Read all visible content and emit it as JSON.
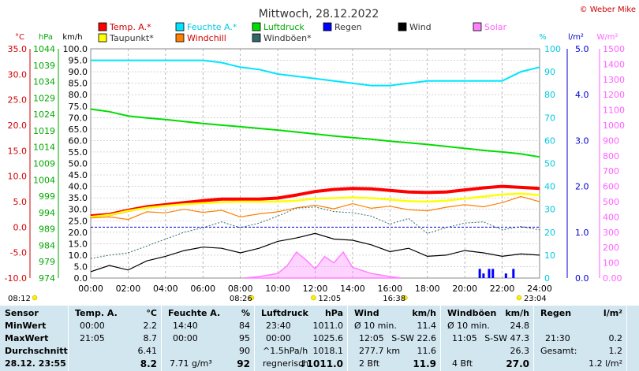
{
  "header": {
    "title": "Mittwoch, 28.12.2022",
    "copyright": "© Weber Mike"
  },
  "legend": [
    {
      "label": "Temp. A.*",
      "color": "#ff0000"
    },
    {
      "label": "Feuchte A.*",
      "color": "#00e5ff"
    },
    {
      "label": "Luftdruck",
      "color": "#00dd00"
    },
    {
      "label": "Regen",
      "color": "#0000ff"
    },
    {
      "label": "Wind",
      "color": "#000000"
    },
    {
      "label": "Solar",
      "color": "#ff80ff"
    },
    {
      "label": "Taupunkt*",
      "color": "#ffff00"
    },
    {
      "label": "Windchill",
      "color": "#ff8000"
    },
    {
      "label": "Windböen*",
      "color": "#336666"
    }
  ],
  "axes": {
    "unit_temp": "°C",
    "unit_hpa": "hPa",
    "unit_kmh": "km/h",
    "unit_pct": "%",
    "unit_rain": "l/m²",
    "unit_solar": "W/m²",
    "temp_ticks": [
      "35.0",
      "30.0",
      "25.0",
      "20.0",
      "15.0",
      "10.0",
      "5.0",
      "0.0",
      "-5.0",
      "-10.0"
    ],
    "hpa_ticks": [
      "1044",
      "1039",
      "1034",
      "1029",
      "1024",
      "1019",
      "1014",
      "1009",
      "1004",
      "999",
      "994",
      "989",
      "984",
      "979",
      "974"
    ],
    "kmh_ticks": [
      "100.0",
      "95.0",
      "90.0",
      "85.0",
      "80.0",
      "75.0",
      "70.0",
      "65.0",
      "60.0",
      "55.0",
      "50.0",
      "45.0",
      "40.0",
      "35.0",
      "30.0",
      "25.0",
      "20.0",
      "15.0",
      "10.0",
      "5.0",
      "0.0"
    ],
    "pct_ticks": [
      "100",
      "90",
      "80",
      "70",
      "60",
      "50",
      "40",
      "30",
      "20",
      "10",
      "0"
    ],
    "rain_ticks": [
      "5.0",
      "4.0",
      "3.0",
      "2.0",
      "1.0",
      "0.0"
    ],
    "solar_ticks": [
      "1500",
      "1400",
      "1300",
      "1200",
      "1100",
      "1000",
      "900",
      "800",
      "700",
      "600",
      "500",
      "400",
      "300",
      "200",
      "100",
      "0.00"
    ],
    "x_ticks": [
      "00:00",
      "02:00",
      "04:00",
      "06:00",
      "08:00",
      "10:00",
      "12:00",
      "14:00",
      "16:00",
      "18:00",
      "20:00",
      "22:00",
      "24:00"
    ],
    "sun_labels": [
      "08:12",
      "08:26",
      "12:05",
      "16:38",
      "23:04"
    ]
  },
  "chart_data": {
    "type": "line",
    "x_unit": "hours",
    "xlim": [
      0,
      24
    ],
    "series": [
      {
        "name": "Temp. A.*",
        "axis": "temp",
        "ylim": [
          -10,
          35
        ],
        "color": "#ff0000",
        "x": [
          0,
          1,
          2,
          3,
          4,
          5,
          6,
          7,
          8,
          9,
          10,
          11,
          12,
          13,
          14,
          15,
          16,
          17,
          18,
          19,
          20,
          21,
          22,
          23,
          24
        ],
        "values": [
          2.2,
          2.5,
          3.3,
          4.0,
          4.4,
          4.8,
          5.2,
          5.5,
          5.5,
          5.5,
          5.7,
          6.3,
          7.0,
          7.4,
          7.6,
          7.5,
          7.2,
          6.9,
          6.8,
          6.9,
          7.3,
          7.7,
          8.0,
          7.8,
          7.6
        ]
      },
      {
        "name": "Taupunkt*",
        "axis": "temp",
        "ylim": [
          -10,
          35
        ],
        "color": "#ffff00",
        "x": [
          0,
          1,
          2,
          3,
          4,
          5,
          6,
          7,
          8,
          9,
          10,
          11,
          12,
          13,
          14,
          15,
          16,
          17,
          18,
          19,
          20,
          21,
          22,
          23,
          24
        ],
        "values": [
          2.0,
          2.4,
          3.2,
          3.8,
          4.2,
          4.5,
          4.7,
          4.9,
          5.0,
          5.0,
          5.0,
          5.2,
          5.6,
          5.7,
          5.8,
          5.7,
          5.4,
          5.1,
          5.0,
          5.2,
          5.6,
          6.0,
          6.4,
          6.6,
          6.3
        ]
      },
      {
        "name": "Windchill",
        "axis": "temp",
        "ylim": [
          -10,
          35
        ],
        "color": "#ff8000",
        "x": [
          0,
          1,
          2,
          3,
          4,
          5,
          6,
          7,
          8,
          9,
          10,
          11,
          12,
          13,
          14,
          15,
          16,
          17,
          18,
          19,
          20,
          21,
          22,
          23,
          24
        ],
        "values": [
          1.8,
          2.0,
          1.5,
          3.0,
          2.8,
          3.5,
          2.9,
          3.3,
          2.0,
          2.6,
          3.0,
          3.8,
          4.3,
          3.6,
          4.6,
          3.7,
          4.1,
          3.4,
          3.2,
          3.9,
          4.4,
          4.0,
          4.8,
          6.0,
          5.0
        ]
      },
      {
        "name": "Feuchte A.*",
        "axis": "pct",
        "ylim": [
          0,
          100
        ],
        "color": "#00e5ff",
        "x": [
          0,
          1,
          2,
          3,
          4,
          5,
          6,
          7,
          8,
          9,
          10,
          11,
          12,
          13,
          14,
          15,
          16,
          17,
          18,
          19,
          20,
          21,
          22,
          23,
          24
        ],
        "values": [
          95,
          95,
          95,
          95,
          95,
          95,
          95,
          94,
          92,
          91,
          89,
          88,
          87,
          86,
          85,
          84,
          84,
          85,
          86,
          86,
          86,
          86,
          86,
          90,
          92
        ]
      },
      {
        "name": "Luftdruck",
        "axis": "hpa",
        "ylim": [
          974,
          1044
        ],
        "color": "#00dd00",
        "x": [
          0,
          1,
          2,
          3,
          4,
          5,
          6,
          7,
          8,
          9,
          10,
          11,
          12,
          13,
          14,
          15,
          16,
          17,
          18,
          19,
          20,
          21,
          22,
          23,
          24
        ],
        "values": [
          1025.6,
          1024.8,
          1023.5,
          1022.9,
          1022.4,
          1021.8,
          1021.2,
          1020.7,
          1020.2,
          1019.7,
          1019.2,
          1018.6,
          1018.0,
          1017.4,
          1016.9,
          1016.4,
          1015.8,
          1015.3,
          1014.8,
          1014.2,
          1013.6,
          1013.0,
          1012.5,
          1011.9,
          1011.0
        ]
      },
      {
        "name": "Wind",
        "axis": "kmh",
        "ylim": [
          0,
          100
        ],
        "color": "#000000",
        "x": [
          0,
          1,
          2,
          3,
          4,
          5,
          6,
          7,
          8,
          9,
          10,
          11,
          12,
          13,
          14,
          15,
          16,
          17,
          18,
          19,
          20,
          21,
          22,
          23,
          24
        ],
        "values": [
          2.8,
          5.5,
          3.5,
          7.5,
          9.5,
          12.0,
          13.5,
          13.0,
          11.0,
          13.0,
          16.0,
          17.5,
          19.5,
          17.0,
          16.5,
          14.5,
          11.5,
          13.0,
          9.5,
          10.0,
          12.0,
          11.0,
          9.5,
          10.5,
          10.0
        ]
      },
      {
        "name": "Windböen*",
        "axis": "kmh",
        "ylim": [
          0,
          100
        ],
        "color": "#336666",
        "x": [
          0,
          1,
          2,
          3,
          4,
          5,
          6,
          7,
          8,
          9,
          10,
          11,
          12,
          13,
          14,
          15,
          16,
          17,
          18,
          19,
          20,
          21,
          22,
          23,
          24
        ],
        "values": [
          8.5,
          10.0,
          11.0,
          14.0,
          17.0,
          20.0,
          22.0,
          24.5,
          22.0,
          24.0,
          27.0,
          30.5,
          31.0,
          29.0,
          28.5,
          27.0,
          23.5,
          26.0,
          19.5,
          22.0,
          24.0,
          24.5,
          21.0,
          22.5,
          21.0
        ]
      },
      {
        "name": "Solar",
        "axis": "solar",
        "ylim": [
          0,
          1500
        ],
        "color": "#ff80ff",
        "x": [
          8.2,
          9,
          10,
          10.5,
          11,
          11.5,
          12,
          12.5,
          13,
          13.5,
          14,
          14.5,
          15,
          15.5,
          16,
          16.6
        ],
        "values": [
          0,
          10,
          30,
          80,
          170,
          120,
          60,
          140,
          100,
          170,
          70,
          50,
          30,
          20,
          10,
          0
        ]
      },
      {
        "name": "Regen",
        "axis": "rain",
        "ylim": [
          0,
          5
        ],
        "color": "#0000ff",
        "x": [
          20.8,
          21.0,
          21.3,
          21.5,
          22.2,
          22.6
        ],
        "values": [
          0.2,
          0.1,
          0.2,
          0.2,
          0.1,
          0.2
        ]
      }
    ]
  },
  "table": {
    "sensor": {
      "header": "Sensor",
      "rows": [
        "MinWert",
        "MaxWert",
        "Durchschnitt"
      ],
      "footer": "28.12. 23:55"
    },
    "temp": {
      "header": "Temp. A.",
      "unit": "°C",
      "rows": [
        [
          "00:00",
          "2.2"
        ],
        [
          "21:05",
          "8.7"
        ],
        [
          "",
          "6.41"
        ]
      ],
      "footer": "8.2"
    },
    "humidity": {
      "header": "Feuchte A.",
      "unit": "%",
      "rows": [
        [
          "14:40",
          "84"
        ],
        [
          "00:00",
          "95"
        ],
        [
          "",
          "90"
        ]
      ],
      "footer_left": "7.71 g/m³",
      "footer": "92"
    },
    "pressure": {
      "header": "Luftdruck",
      "unit": "hPa",
      "rows": [
        [
          "23:40",
          "1011.0"
        ],
        [
          "00:00",
          "1025.6"
        ],
        [
          "^1.5hPa/h",
          "1018.1"
        ]
      ],
      "footer_left": "regnerisch",
      "footer": "↓1011.0"
    },
    "wind": {
      "header": "Wind",
      "unit": "km/h",
      "rows": [
        [
          "Ø 10 min.",
          "11.4"
        ],
        [
          "12:05",
          "S-SW 22.6"
        ],
        [
          "277.7 km",
          "11.6"
        ]
      ],
      "footer_left": "2 Bft",
      "footer": "11.9"
    },
    "gust": {
      "header": "Windböen",
      "unit": "km/h",
      "rows": [
        [
          "Ø 10 min.",
          "24.8"
        ],
        [
          "11:05",
          "S-SW 47.3"
        ],
        [
          "",
          "26.3"
        ]
      ],
      "footer_left": "4 Bft",
      "footer": "27.0"
    },
    "rain": {
      "header": "Regen",
      "unit": "l/m²",
      "rows": [
        [
          "",
          ""
        ],
        [
          "21:30",
          "0.2"
        ],
        [
          "Gesamt:",
          "1.2"
        ]
      ],
      "footer": "1.2 l/m²"
    }
  }
}
